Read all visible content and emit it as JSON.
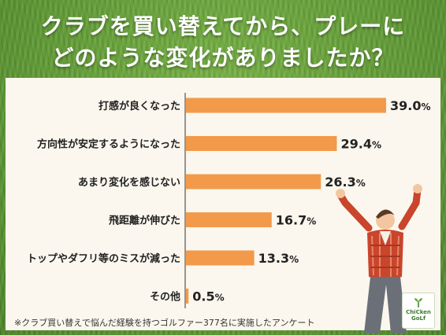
{
  "title": {
    "line1": "クラブを買い替えてから、プレーに",
    "line2": "どのような変化がありましたか？"
  },
  "chart_data": {
    "type": "bar",
    "orientation": "horizontal",
    "categories": [
      "打感が良くなった",
      "方向性が安定するようになった",
      "あまり変化を感じない",
      "飛距離が伸びた",
      "トップやダフリ等のミスが減った",
      "その他"
    ],
    "values": [
      39.0,
      29.4,
      26.3,
      16.7,
      13.3,
      0.5
    ],
    "value_labels": [
      "39.0",
      "29.4",
      "26.3",
      "16.7",
      "13.3",
      "0.5"
    ],
    "unit": "%",
    "xlim": [
      0,
      39.0
    ],
    "grid": false,
    "bar_color": "#f29a4a"
  },
  "footnote": "※クラブ買い替えで悩んだ経験を持つゴルファー377名に実施したアンケート",
  "logo": {
    "line1": "ChiCken",
    "line2": "GoLf"
  },
  "colors": {
    "background": "#5f9a34",
    "panel": "#fbf7ee",
    "axis": "#333333",
    "shirt": "#c9452c"
  },
  "illustration": {
    "icon": "cheering-golfer-illustration"
  }
}
